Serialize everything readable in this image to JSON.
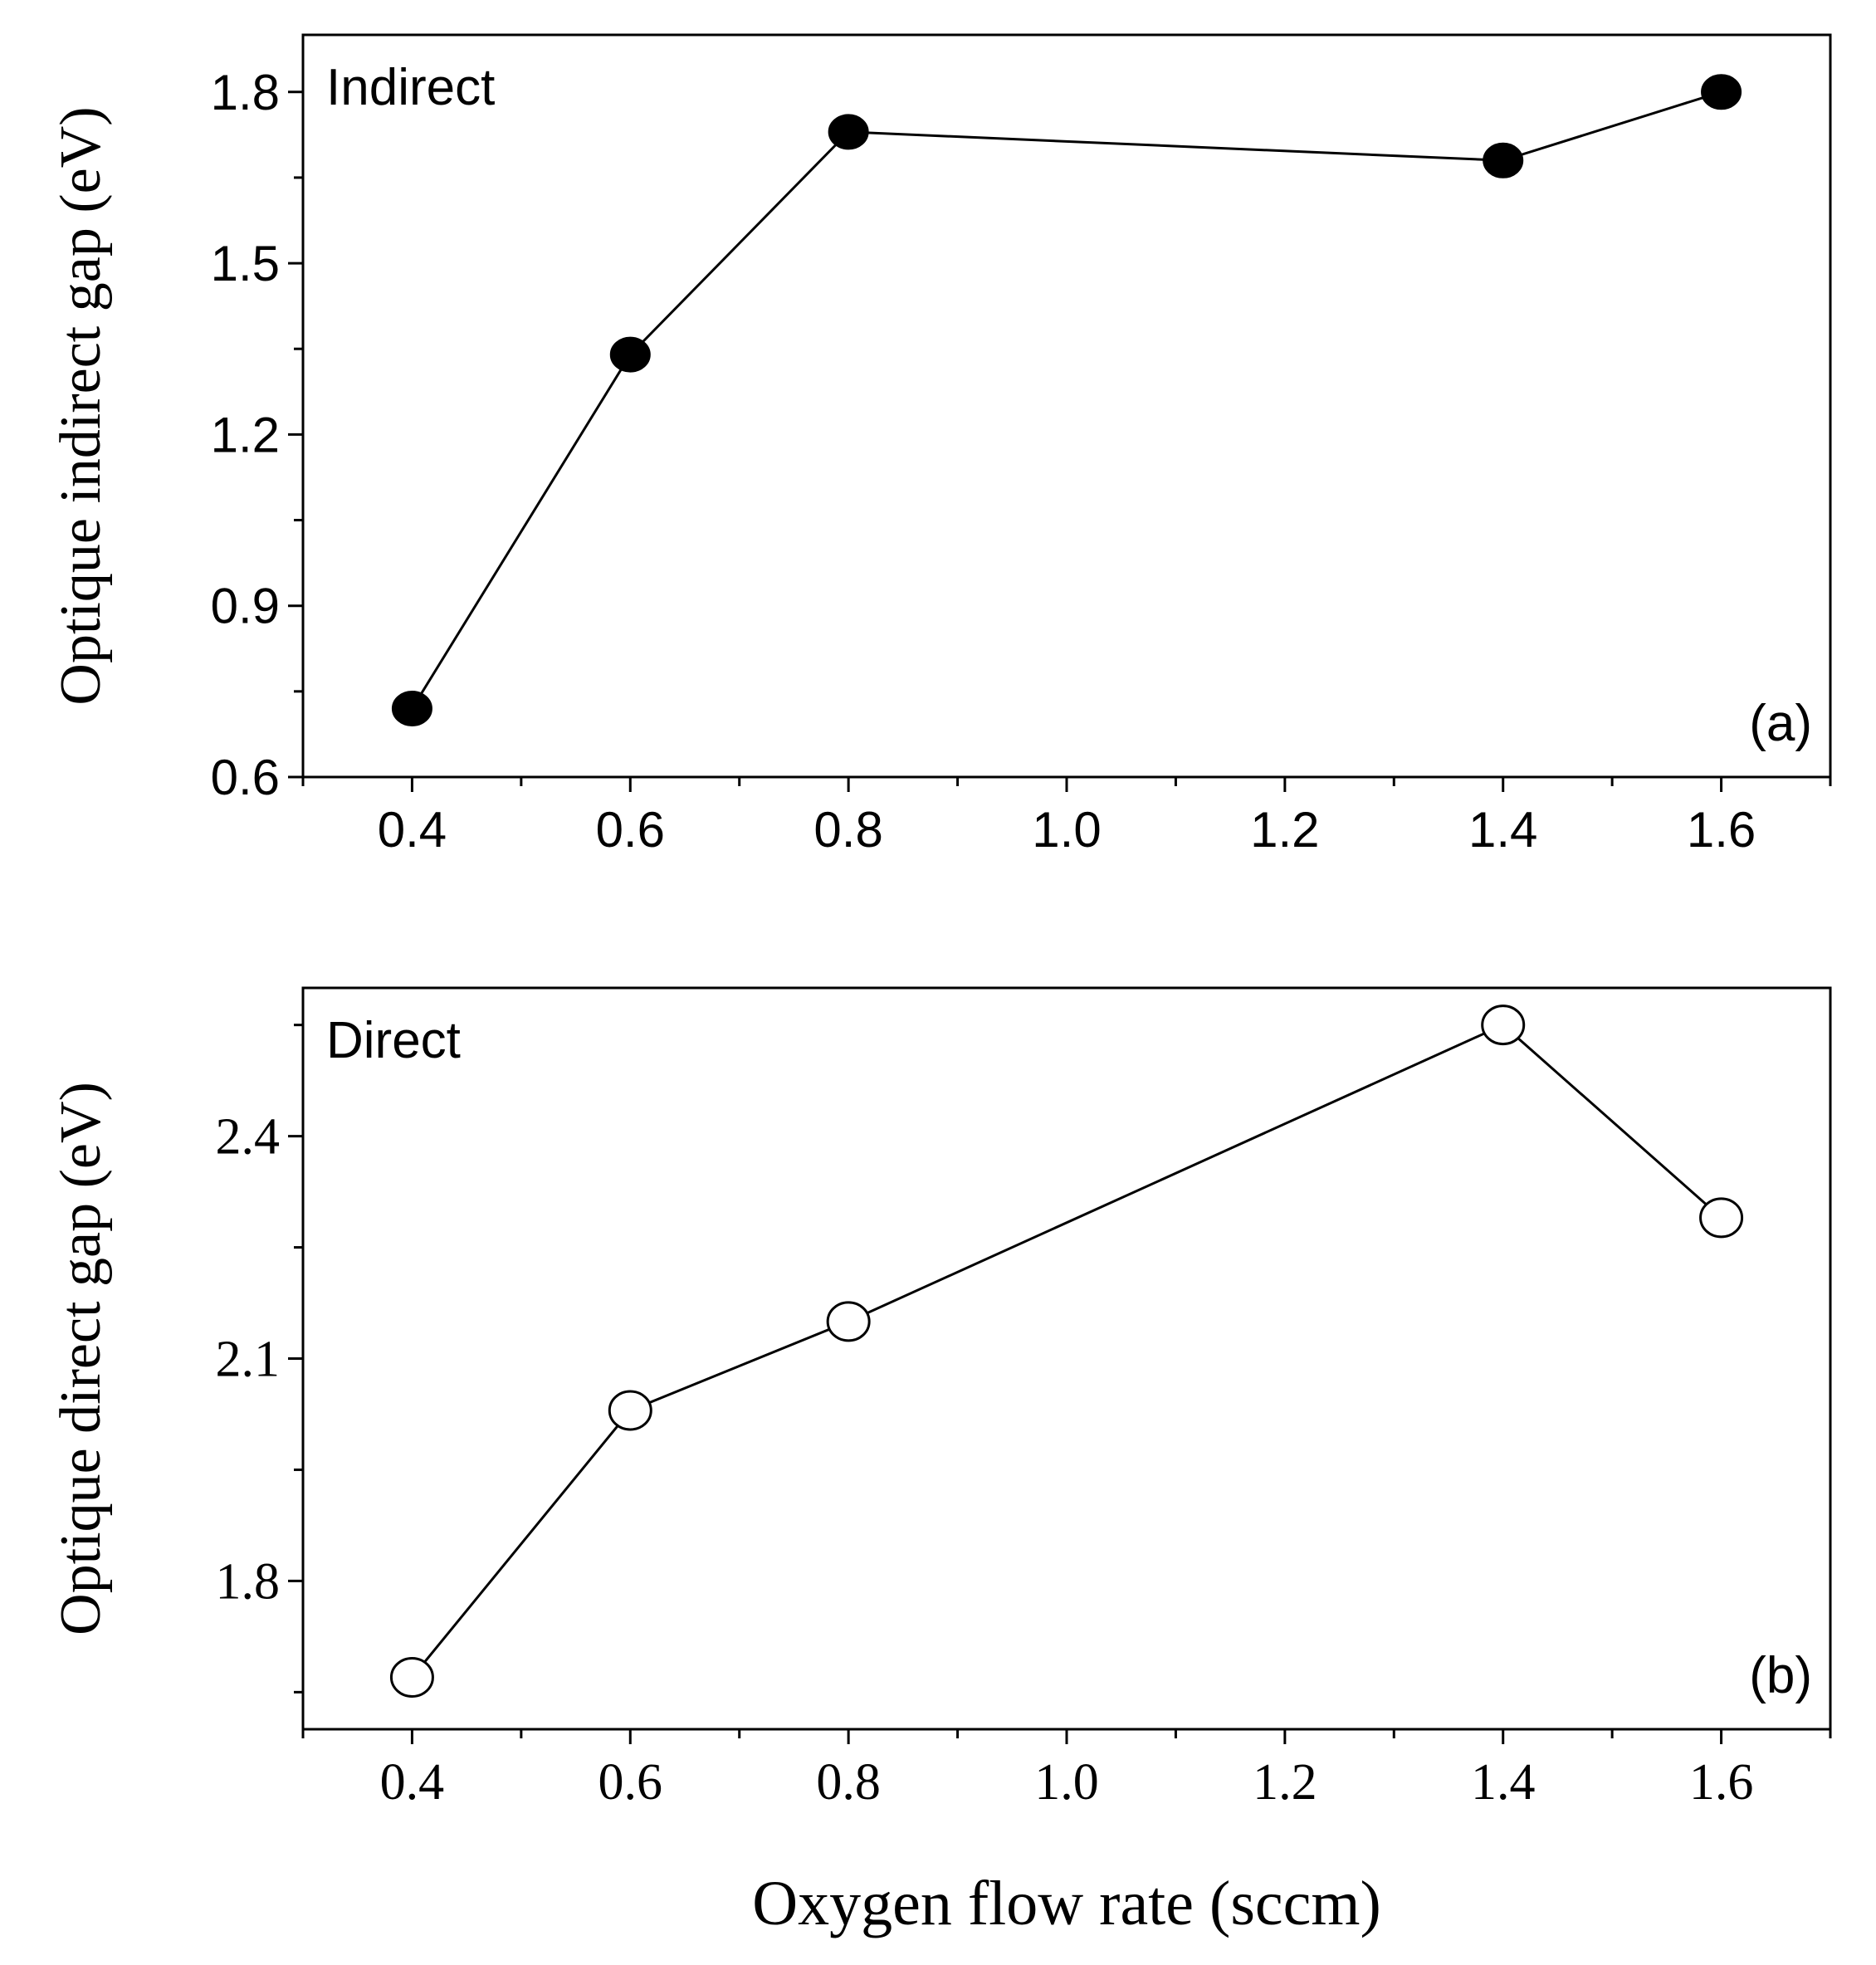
{
  "chart_data": [
    {
      "type": "line",
      "panel_label": "(a)",
      "annotation": "Indirect",
      "ylabel": "Optique indirect gap (eV)",
      "xlabel": "",
      "x": [
        0.4,
        0.6,
        0.8,
        1.4,
        1.6
      ],
      "series": [
        {
          "name": "Indirect",
          "values": [
            0.72,
            1.34,
            1.73,
            1.68,
            1.8
          ],
          "marker": "filled-circle"
        }
      ],
      "xlim": [
        0.3,
        1.7
      ],
      "ylim": [
        0.6,
        1.9
      ],
      "xticks": [
        "0.4",
        "0.6",
        "0.8",
        "1.0",
        "1.2",
        "1.4",
        "1.6"
      ],
      "yticks": [
        "0.6",
        "0.9",
        "1.2",
        "1.5",
        "1.8"
      ],
      "grid": false
    },
    {
      "type": "line",
      "panel_label": "(b)",
      "annotation": "Direct",
      "ylabel": "Optique direct gap (eV)",
      "xlabel": "Oxygen flow rate (sccm)",
      "x": [
        0.4,
        0.6,
        0.8,
        1.4,
        1.6
      ],
      "series": [
        {
          "name": "Direct",
          "values": [
            1.67,
            2.03,
            2.15,
            2.55,
            2.29
          ],
          "marker": "open-circle"
        }
      ],
      "xlim": [
        0.3,
        1.7
      ],
      "ylim": [
        1.6,
        2.6
      ],
      "xticks": [
        "0.4",
        "0.6",
        "0.8",
        "1.0",
        "1.2",
        "1.4",
        "1.6"
      ],
      "yticks": [
        "1.8",
        "2.1",
        "2.4"
      ],
      "grid": false
    }
  ],
  "colors": {
    "line": "#000000",
    "background": "#ffffff",
    "marker_fill_open": "#ffffff"
  }
}
